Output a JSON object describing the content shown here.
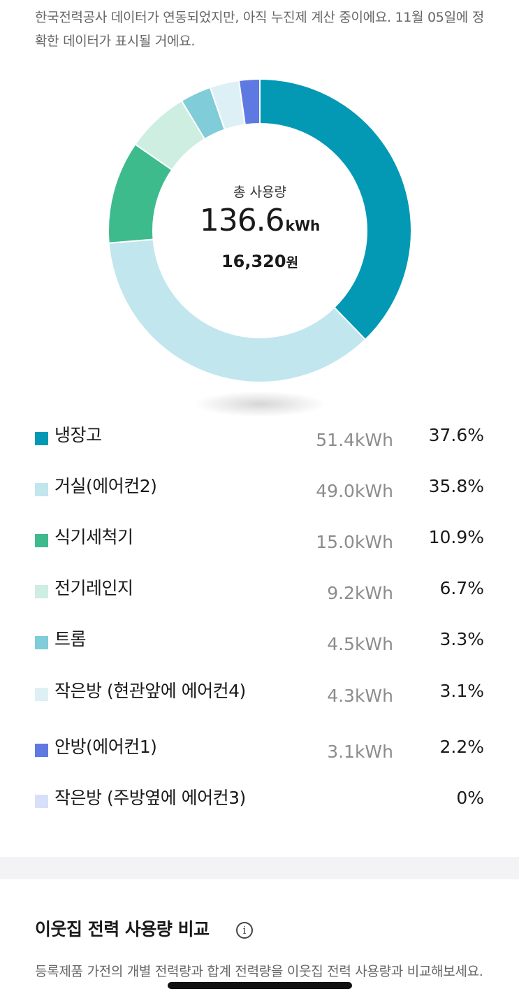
{
  "notice": "한국전력공사 데이터가 연동되었지만, 아직 누진제 계산 중이에요. 11월 05일에 정확한 데이터가 표시될 거에요.",
  "total": {
    "title": "총 사용량",
    "value": "136.6",
    "value_unit": "kWh",
    "cost": "16,320",
    "cost_unit": "원"
  },
  "chart_data": {
    "type": "pie",
    "title": "총 사용량",
    "total_kwh": 136.6,
    "total_cost_won": 16320,
    "categories": [
      "냉장고",
      "거실(에어컨2)",
      "식기세척기",
      "전기레인지",
      "트롬",
      "작은방 (현관앞에 에어컨4)",
      "안방(에어컨1)",
      "작은방 (주방옆에 에어컨3)"
    ],
    "values_kwh": [
      51.4,
      49.0,
      15.0,
      9.2,
      4.5,
      4.3,
      3.1,
      0
    ],
    "values_pct": [
      37.6,
      35.8,
      10.9,
      6.7,
      3.3,
      3.1,
      2.2,
      0
    ],
    "colors": [
      "#0399b4",
      "#c1e6ee",
      "#3ebb8c",
      "#cdeee1",
      "#80ccd8",
      "#ddf0f5",
      "#5e7ae2",
      "#d8dff8"
    ]
  },
  "legend": [
    {
      "name": "냉장고",
      "kwh": "51.4kWh",
      "pct": "37.6%",
      "color": "#0399b4"
    },
    {
      "name": "거실(에어컨2)",
      "kwh": "49.0kWh",
      "pct": "35.8%",
      "color": "#c1e6ee"
    },
    {
      "name": "식기세척기",
      "kwh": "15.0kWh",
      "pct": "10.9%",
      "color": "#3ebb8c"
    },
    {
      "name": "전기레인지",
      "kwh": "9.2kWh",
      "pct": "6.7%",
      "color": "#cdeee1"
    },
    {
      "name": "트롬",
      "kwh": "4.5kWh",
      "pct": "3.3%",
      "color": "#80ccd8"
    },
    {
      "name": "작은방 (현관앞에 에어컨4)",
      "kwh": "4.3kWh",
      "pct": "3.1%",
      "color": "#ddf0f5"
    },
    {
      "name": "안방(에어컨1)",
      "kwh": "3.1kWh",
      "pct": "2.2%",
      "color": "#5e7ae2"
    },
    {
      "name": "작은방 (주방옆에 에어컨3)",
      "kwh": "",
      "pct": "0%",
      "color": "#d8dff8"
    }
  ],
  "compare": {
    "title": "이웃집 전력 사용량 비교",
    "info_icon": "info-icon",
    "description": "등록제품 가전의 개별 전력량과 합계 전력량을 이웃집 전력 사용량과 비교해보세요."
  }
}
